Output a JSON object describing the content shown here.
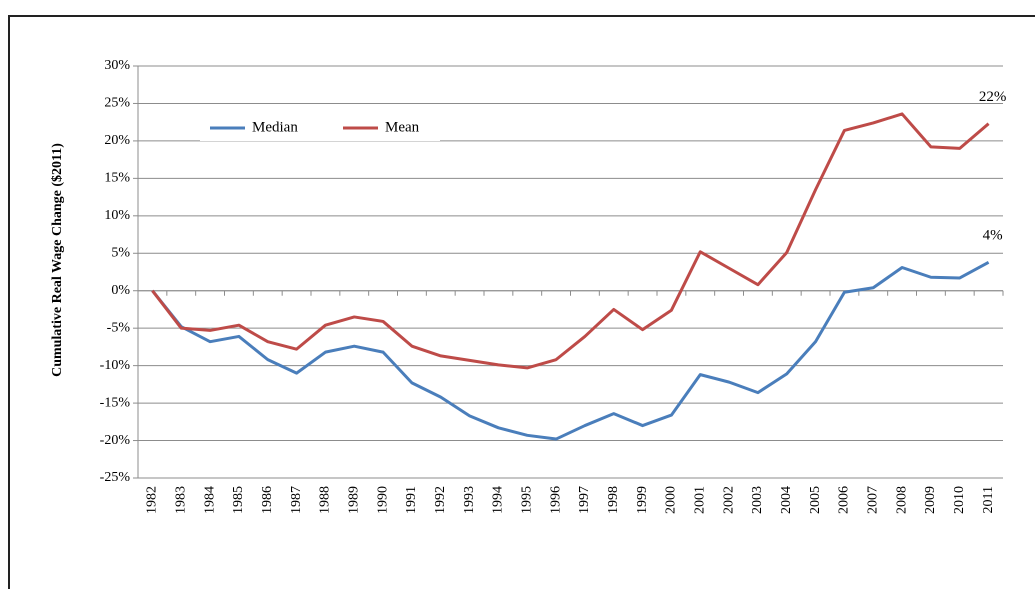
{
  "chart_data": {
    "type": "line",
    "y_label": "Cumulative Real Wage Change ($2011)",
    "categories": [
      "1982",
      "1983",
      "1984",
      "1985",
      "1986",
      "1987",
      "1988",
      "1989",
      "1990",
      "1991",
      "1992",
      "1993",
      "1994",
      "1995",
      "1996",
      "1997",
      "1998",
      "1999",
      "2000",
      "2001",
      "2002",
      "2003",
      "2004",
      "2005",
      "2006",
      "2007",
      "2008",
      "2009",
      "2010",
      "2011"
    ],
    "series": [
      {
        "name": "Median",
        "color": "#4a7ebb",
        "values": [
          0,
          -4.8,
          -6.8,
          -6.1,
          -9.2,
          -11.0,
          -8.2,
          -7.4,
          -8.2,
          -12.3,
          -14.2,
          -16.7,
          -18.3,
          -19.3,
          -19.8,
          -18.0,
          -16.4,
          -18.0,
          -16.6,
          -11.2,
          -12.2,
          -13.6,
          -11.1,
          -6.8,
          -0.2,
          0.4,
          3.1,
          1.8,
          1.7,
          3.8
        ]
      },
      {
        "name": "Mean",
        "color": "#be4b48",
        "values": [
          0,
          -5.0,
          -5.3,
          -4.6,
          -6.8,
          -7.8,
          -4.6,
          -3.5,
          -4.1,
          -7.4,
          -8.7,
          -9.3,
          -9.9,
          -10.3,
          -9.2,
          -6.1,
          -2.5,
          -5.2,
          -2.6,
          5.2,
          3.0,
          0.8,
          5.1,
          13.5,
          21.4,
          22.4,
          23.6,
          19.2,
          19.0,
          22.3
        ]
      }
    ],
    "annotations": [
      "22%",
      "4%"
    ],
    "ylim": [
      -25,
      30
    ],
    "yticks": [
      {
        "value": -25,
        "label": "-25%"
      },
      {
        "value": -20,
        "label": "-20%"
      },
      {
        "value": -15,
        "label": "-15%"
      },
      {
        "value": -10,
        "label": "-10%"
      },
      {
        "value": -5,
        "label": "-5%"
      },
      {
        "value": 0,
        "label": "0%"
      },
      {
        "value": 5,
        "label": "5%"
      },
      {
        "value": 10,
        "label": "10%"
      },
      {
        "value": 15,
        "label": "15%"
      },
      {
        "value": 20,
        "label": "20%"
      },
      {
        "value": 25,
        "label": "25%"
      },
      {
        "value": 30,
        "label": "30%"
      }
    ],
    "grid": true,
    "legend": "upper left"
  }
}
